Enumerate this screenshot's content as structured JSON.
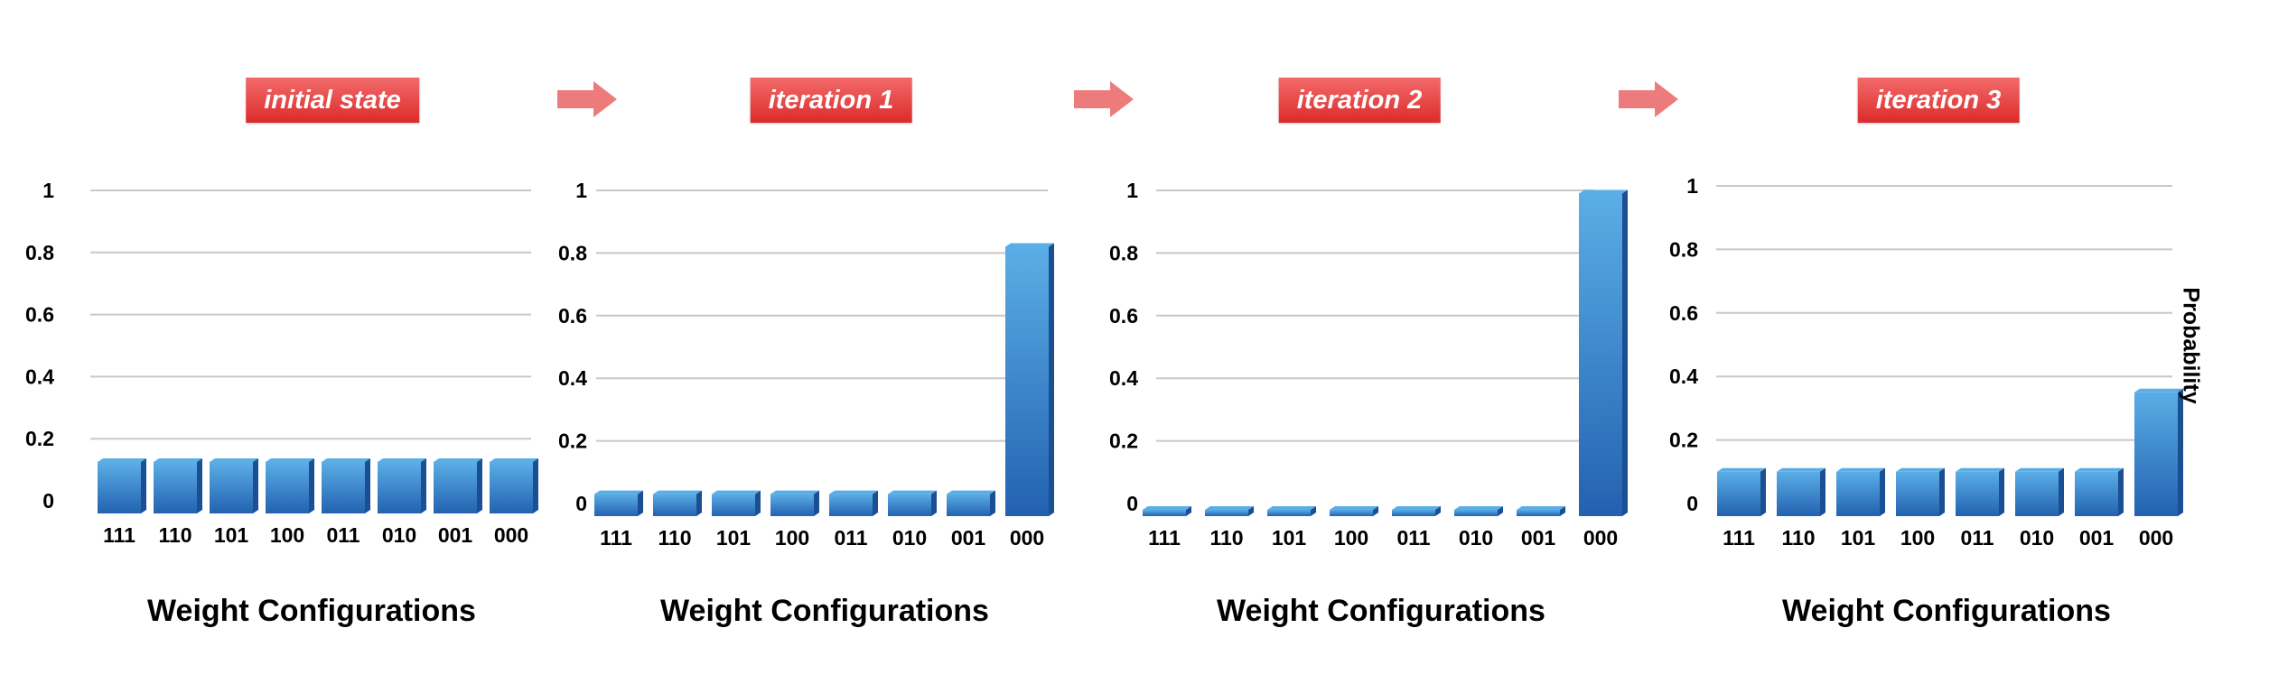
{
  "arrow_color": "#ee7b7b",
  "label_color": "#e03a3a",
  "bar_color_top": "#5aaee6",
  "bar_color_bottom": "#2361b0",
  "y_axis_title": "Probability",
  "chart_data": [
    {
      "type": "bar",
      "title": "initial state",
      "xlabel": "Weight Configurations",
      "ylabel": "",
      "categories": [
        "111",
        "110",
        "101",
        "100",
        "011",
        "010",
        "001",
        "000"
      ],
      "values": [
        0.125,
        0.125,
        0.125,
        0.125,
        0.125,
        0.125,
        0.125,
        0.125
      ],
      "yticks": [
        "0",
        "0.2",
        "0.4",
        "0.6",
        "0.8",
        "1"
      ],
      "ylim": [
        0,
        1
      ],
      "grid": true
    },
    {
      "type": "bar",
      "title": "iteration 1",
      "xlabel": "Weight Configurations",
      "ylabel": "",
      "categories": [
        "111",
        "110",
        "101",
        "100",
        "011",
        "010",
        "001",
        "000"
      ],
      "values": [
        0.03,
        0.03,
        0.03,
        0.03,
        0.03,
        0.03,
        0.03,
        0.82
      ],
      "yticks": [
        "0",
        "0.2",
        "0.4",
        "0.6",
        "0.8",
        "1"
      ],
      "ylim": [
        0,
        1
      ],
      "grid": true
    },
    {
      "type": "bar",
      "title": "iteration 2",
      "xlabel": "Weight Configurations",
      "ylabel": "",
      "categories": [
        "111",
        "110",
        "101",
        "100",
        "011",
        "010",
        "001",
        "000"
      ],
      "values": [
        -0.02,
        -0.02,
        -0.02,
        -0.02,
        -0.02,
        -0.02,
        -0.02,
        0.99
      ],
      "yticks": [
        "0",
        "0.2",
        "0.4",
        "0.6",
        "0.8",
        "1"
      ],
      "ylim": [
        0,
        1
      ],
      "grid": true
    },
    {
      "type": "bar",
      "title": "iteration 3",
      "xlabel": "Weight Configurations",
      "ylabel": "Probability",
      "categories": [
        "111",
        "110",
        "101",
        "100",
        "011",
        "010",
        "001",
        "000"
      ],
      "values": [
        0.1,
        0.1,
        0.1,
        0.1,
        0.1,
        0.1,
        0.1,
        0.35
      ],
      "yticks": [
        "0",
        "0.2",
        "0.4",
        "0.6",
        "0.8",
        "1"
      ],
      "ylim": [
        0,
        1
      ],
      "grid": true
    }
  ]
}
